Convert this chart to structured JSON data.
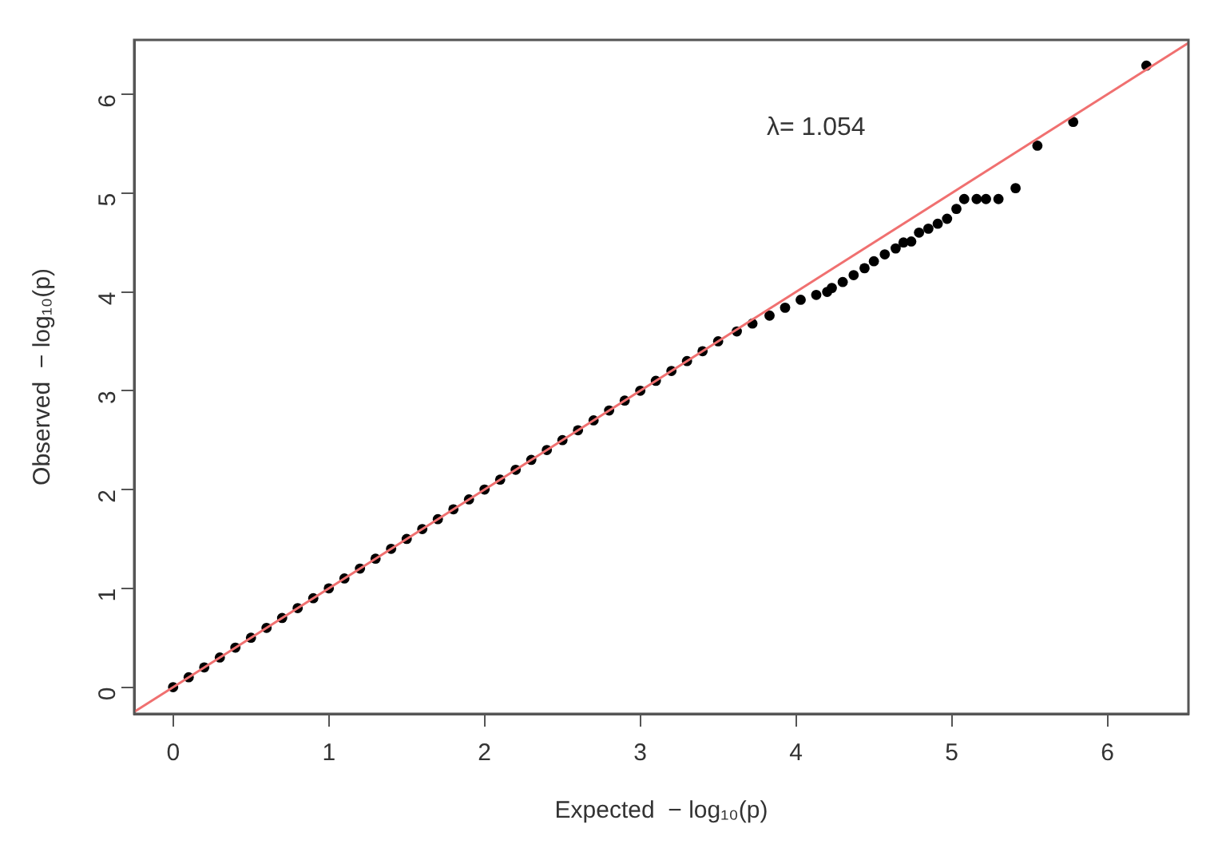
{
  "chart_data": {
    "type": "scatter",
    "xlabel": "Expected  − log₁₀(p)",
    "ylabel": "Observed  − log₁₀(p)",
    "xlim": [
      -0.25,
      6.52
    ],
    "ylim": [
      -0.27,
      6.55
    ],
    "xticks": [
      0,
      1,
      2,
      3,
      4,
      5,
      6
    ],
    "yticks": [
      0,
      1,
      2,
      3,
      4,
      5,
      6
    ],
    "grid": false,
    "legend": false,
    "marker": "circle",
    "annotations": [
      "λ= 1.054"
    ],
    "series": [
      {
        "color": "#000000",
        "x": [
          0,
          0.1,
          0.2,
          0.3,
          0.4,
          0.5,
          0.6,
          0.7,
          0.8,
          0.9,
          1.0,
          1.1,
          1.2,
          1.3,
          1.4,
          1.5,
          1.6,
          1.7,
          1.8,
          1.9,
          2.0,
          2.1,
          2.2,
          2.3,
          2.4,
          2.5,
          2.6,
          2.7,
          2.8,
          2.9,
          3.0,
          3.1,
          3.2,
          3.3,
          3.4,
          3.5,
          3.62,
          3.72,
          3.83,
          3.93,
          4.03,
          4.13,
          4.2,
          4.23,
          4.3,
          4.37,
          4.44,
          4.5,
          4.57,
          4.64,
          4.69,
          4.74,
          4.79,
          4.85,
          4.91,
          4.97,
          5.03,
          5.08,
          5.16,
          5.22,
          5.3,
          5.41,
          5.55,
          5.78,
          6.25
        ],
        "values": [
          0,
          0.1,
          0.2,
          0.3,
          0.4,
          0.5,
          0.6,
          0.7,
          0.8,
          0.9,
          1.0,
          1.1,
          1.2,
          1.3,
          1.4,
          1.5,
          1.6,
          1.7,
          1.8,
          1.9,
          2.0,
          2.1,
          2.2,
          2.3,
          2.4,
          2.5,
          2.6,
          2.7,
          2.8,
          2.9,
          3.0,
          3.1,
          3.2,
          3.3,
          3.4,
          3.5,
          3.6,
          3.68,
          3.76,
          3.84,
          3.92,
          3.97,
          4.0,
          4.04,
          4.1,
          4.17,
          4.24,
          4.31,
          4.38,
          4.44,
          4.5,
          4.51,
          4.6,
          4.64,
          4.69,
          4.74,
          4.84,
          4.94,
          4.94,
          4.94,
          4.94,
          5.05,
          5.48,
          5.72,
          6.29
        ]
      },
      {
        "type": "line",
        "marker": "none",
        "color": "#f07070",
        "x": [
          -0.25,
          6.52
        ],
        "values": [
          -0.25,
          6.52
        ]
      }
    ]
  }
}
